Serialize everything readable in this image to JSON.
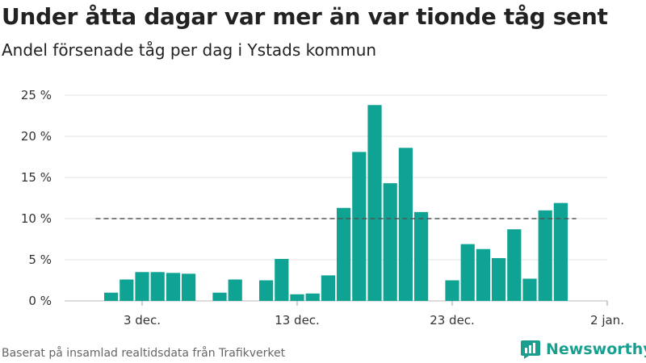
{
  "header": {
    "title": "Under åtta dagar var mer än var tionde tåg sent",
    "subtitle": "Andel försenade tåg per dag i Ystads kommun"
  },
  "footer": {
    "source": "Baserat på insamlad realtidsdata från Trafikverket",
    "brand": "Newsworthy"
  },
  "colors": {
    "bar": "#0fa394",
    "reference": "#555555",
    "grid": "#e2e2e2",
    "brand": "#1a9e8f"
  },
  "chart_data": {
    "type": "bar",
    "x_start": "2018-11-28",
    "x_end": "2019-01-02",
    "ylim": [
      0,
      25
    ],
    "y_ticks": [
      0,
      5,
      10,
      15,
      20,
      25
    ],
    "y_tick_labels": [
      "0 %",
      "5 %",
      "10 %",
      "15 %",
      "20 %",
      "25 %"
    ],
    "x_ticks": [
      "2018-12-03",
      "2018-12-13",
      "2018-12-23",
      "2019-01-02"
    ],
    "x_tick_labels": [
      "3 dec.",
      "13 dec.",
      "23 dec.",
      "2 jan."
    ],
    "reference_line": {
      "y": 10,
      "x_from": "2018-11-30",
      "x_to": "2018-12-31",
      "style": "dashed"
    },
    "grid": true,
    "points": [
      {
        "date": "2018-12-01",
        "value": 1.0
      },
      {
        "date": "2018-12-02",
        "value": 2.6
      },
      {
        "date": "2018-12-03",
        "value": 3.5
      },
      {
        "date": "2018-12-04",
        "value": 3.5
      },
      {
        "date": "2018-12-05",
        "value": 3.4
      },
      {
        "date": "2018-12-06",
        "value": 3.3
      },
      {
        "date": "2018-12-08",
        "value": 1.0
      },
      {
        "date": "2018-12-09",
        "value": 2.6
      },
      {
        "date": "2018-12-11",
        "value": 2.5
      },
      {
        "date": "2018-12-12",
        "value": 5.1
      },
      {
        "date": "2018-12-13",
        "value": 0.8
      },
      {
        "date": "2018-12-14",
        "value": 0.9
      },
      {
        "date": "2018-12-15",
        "value": 3.1
      },
      {
        "date": "2018-12-16",
        "value": 11.3
      },
      {
        "date": "2018-12-17",
        "value": 18.1
      },
      {
        "date": "2018-12-18",
        "value": 23.8
      },
      {
        "date": "2018-12-19",
        "value": 14.3
      },
      {
        "date": "2018-12-20",
        "value": 18.6
      },
      {
        "date": "2018-12-21",
        "value": 10.8
      },
      {
        "date": "2018-12-23",
        "value": 2.5
      },
      {
        "date": "2018-12-24",
        "value": 6.9
      },
      {
        "date": "2018-12-25",
        "value": 6.3
      },
      {
        "date": "2018-12-26",
        "value": 5.2
      },
      {
        "date": "2018-12-27",
        "value": 8.7
      },
      {
        "date": "2018-12-28",
        "value": 2.7
      },
      {
        "date": "2018-12-29",
        "value": 11.0
      },
      {
        "date": "2018-12-30",
        "value": 11.9
      }
    ]
  }
}
